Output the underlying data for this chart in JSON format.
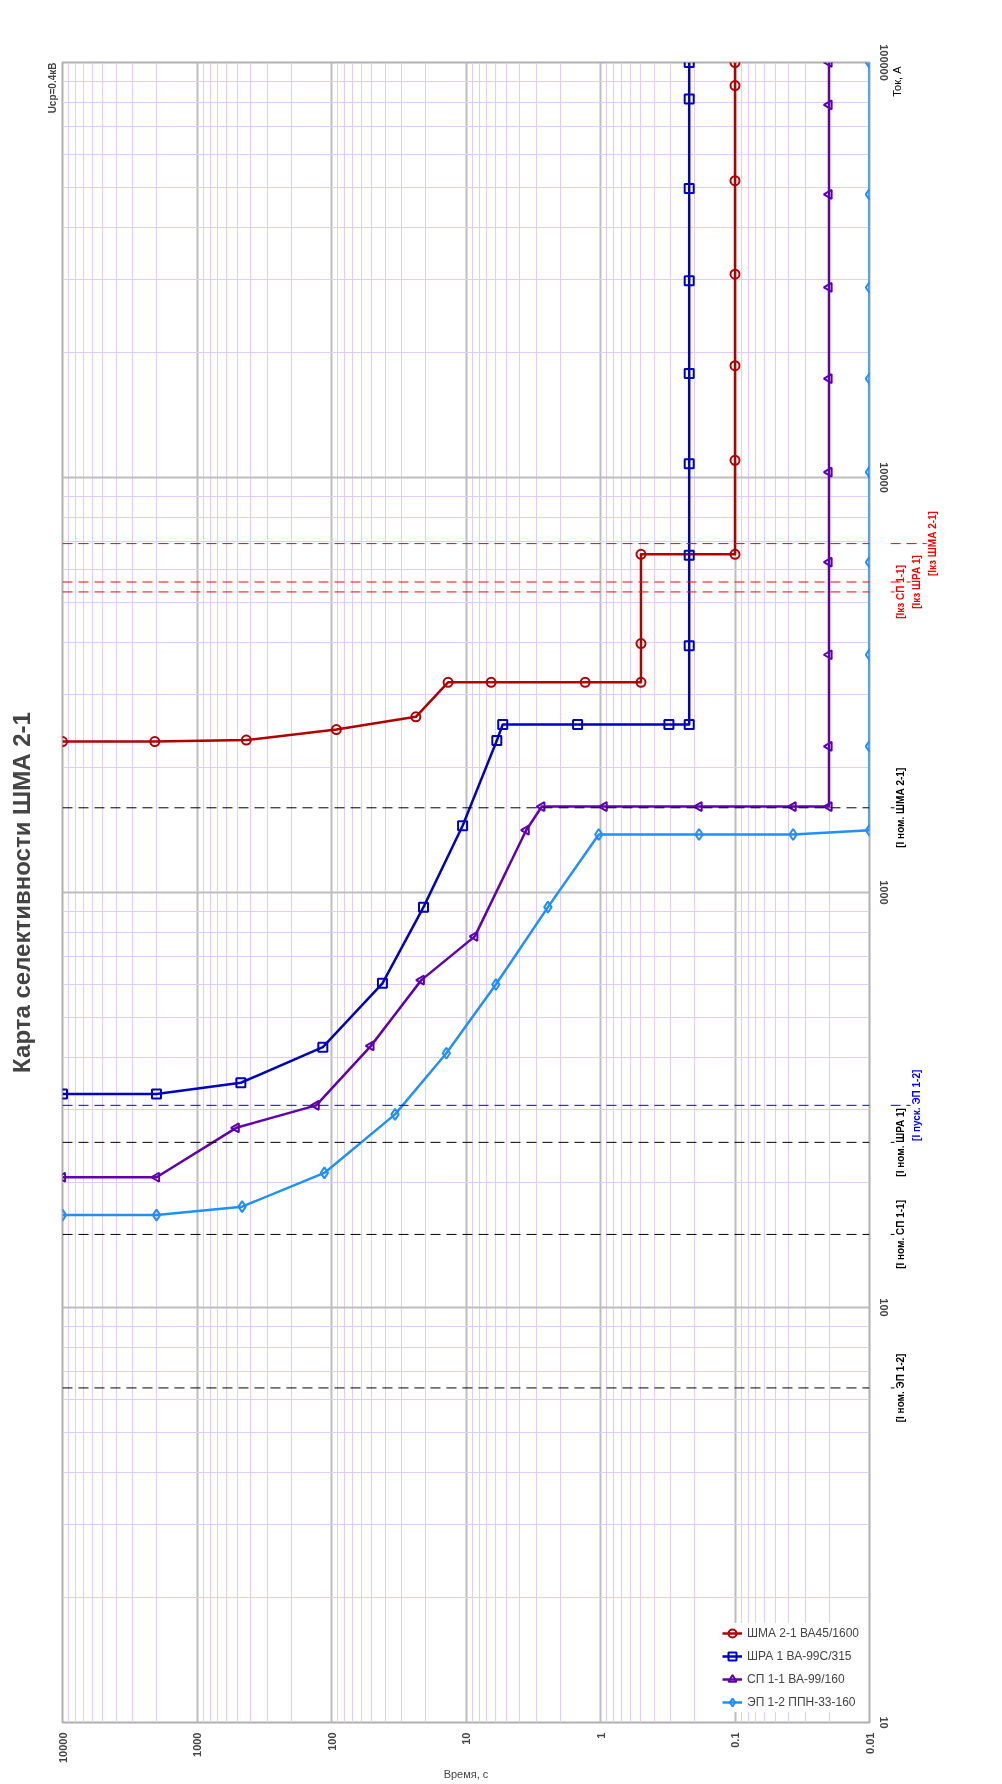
{
  "chart_data": {
    "type": "line",
    "title": "Карта селективности ШМА 2-1",
    "xlabel": "Время, с",
    "ylabel": "Ток, А",
    "annotations": [
      "Uср=0.4кВ"
    ],
    "log": "xy",
    "xlim": [
      10000,
      0.01
    ],
    "ylim": [
      10,
      100000
    ],
    "xticks": [
      10000,
      {
        "value": 9000,
        "label": null
      },
      {
        "value": 8000,
        "label": null
      },
      {
        "value": 7000,
        "label": null
      },
      {
        "value": 6000,
        "label": null
      },
      {
        "value": 5000,
        "label": null
      },
      {
        "value": 4000,
        "label": null
      },
      {
        "value": 3000,
        "label": null
      },
      {
        "value": 2000,
        "label": null
      },
      1000,
      {
        "value": 900,
        "label": null
      },
      {
        "value": 800,
        "label": null
      },
      {
        "value": 700,
        "label": null
      },
      {
        "value": 600,
        "label": null
      },
      {
        "value": 500,
        "label": null
      },
      {
        "value": 400,
        "label": null
      },
      {
        "value": 300,
        "label": null
      },
      {
        "value": 200,
        "label": null
      },
      100,
      {
        "value": 90,
        "label": null
      },
      {
        "value": 80,
        "label": null
      },
      {
        "value": 70,
        "label": null
      },
      {
        "value": 60,
        "label": null
      },
      {
        "value": 50,
        "label": null
      },
      {
        "value": 40,
        "label": null
      },
      {
        "value": 30,
        "label": null
      },
      {
        "value": 20,
        "label": null
      },
      10,
      {
        "value": 9,
        "label": null
      },
      {
        "value": 8,
        "label": null
      },
      {
        "value": 7,
        "label": null
      },
      {
        "value": 6,
        "label": null
      },
      {
        "value": 5,
        "label": null
      },
      {
        "value": 4,
        "label": null
      },
      {
        "value": 3,
        "label": null
      },
      {
        "value": 2,
        "label": null
      },
      1,
      {
        "value": 0.9,
        "label": null
      },
      {
        "value": 0.8,
        "label": null
      },
      {
        "value": 0.7,
        "label": null
      },
      {
        "value": 0.6,
        "label": null
      },
      {
        "value": 0.5,
        "label": null
      },
      {
        "value": 0.4,
        "label": null
      },
      {
        "value": 0.3,
        "label": null
      },
      {
        "value": 0.2,
        "label": null
      },
      0.1,
      {
        "value": 0.09,
        "label": null
      },
      {
        "value": 0.08,
        "label": null
      },
      {
        "value": 0.07,
        "label": null
      },
      {
        "value": 0.06,
        "label": null
      },
      {
        "value": 0.05,
        "label": null
      },
      {
        "value": 0.04,
        "label": null
      },
      {
        "value": 0.03,
        "label": null
      },
      {
        "value": 0.02,
        "label": null
      },
      0.01
    ],
    "yticks": [
      10,
      {
        "value": 20,
        "label": null
      },
      {
        "value": 30,
        "label": null
      },
      {
        "value": 40,
        "label": null
      },
      {
        "value": 50,
        "label": null
      },
      {
        "value": 60,
        "label": null
      },
      {
        "value": 70,
        "label": null
      },
      {
        "value": 80,
        "label": null
      },
      {
        "value": 90,
        "label": null
      },
      100,
      {
        "value": 200,
        "label": null
      },
      {
        "value": 300,
        "label": null
      },
      {
        "value": 400,
        "label": null
      },
      {
        "value": 500,
        "label": null
      },
      {
        "value": 600,
        "label": null
      },
      {
        "value": 700,
        "label": null
      },
      {
        "value": 800,
        "label": null
      },
      {
        "value": 900,
        "label": null
      },
      1000,
      {
        "value": 2000,
        "label": null
      },
      {
        "value": 3000,
        "label": null
      },
      {
        "value": 4000,
        "label": null
      },
      {
        "value": 5000,
        "label": null
      },
      {
        "value": 6000,
        "label": null
      },
      {
        "value": 7000,
        "label": null
      },
      {
        "value": 8000,
        "label": null
      },
      {
        "value": 9000,
        "label": null
      },
      10000,
      {
        "value": 20000,
        "label": null
      },
      {
        "value": 30000,
        "label": null
      },
      {
        "value": 40000,
        "label": null
      },
      {
        "value": 50000,
        "label": null
      },
      {
        "value": 60000,
        "label": null
      },
      {
        "value": 70000,
        "label": null
      },
      {
        "value": 80000,
        "label": null
      },
      {
        "value": 90000,
        "label": null
      },
      100000
    ],
    "grid": true,
    "legend": "bottom right",
    "line_style": "solid",
    "series": [
      {
        "name": "ШМА 2-1 ВА45/1600",
        "color": "#b00000",
        "marker": "circle",
        "x": [
          10000,
          2060,
          430,
          92,
          23.6,
          13.6,
          6.5,
          1.3,
          0.5,
          0.5,
          0.5,
          0.1,
          0.1,
          0.1,
          0.1,
          0.1,
          0.1,
          0.1
        ],
        "values": [
          2310,
          2310,
          2330,
          2470,
          2650,
          3210,
          3210,
          3210,
          3210,
          3980,
          6530,
          6530,
          11000,
          18600,
          30900,
          51900,
          88000,
          100000
        ]
      },
      {
        "name": "ШРА 1 ВА-99С/315",
        "color": "#0000c0",
        "marker": "square",
        "x": [
          10000,
          2000,
          472,
          116,
          41.8,
          20.7,
          10.6,
          5.9,
          5.33,
          1.48,
          0.31,
          0.219,
          0.219,
          0.219,
          0.219,
          0.219,
          0.219,
          0.219,
          0.219,
          0.219
        ],
        "values": [
          327,
          327,
          348,
          424,
          604,
          922,
          1448,
          2323,
          2541,
          2541,
          2541,
          2541,
          3930,
          6500,
          10800,
          17800,
          29800,
          49700,
          81700,
          100000
        ]
      },
      {
        "name": "СП 1-1 ВА-99/160",
        "color": "#6000b0",
        "marker": "triangle",
        "x": [
          10000,
          2000,
          511,
          130,
          50.9,
          21.5,
          8.6,
          3.57,
          2.73,
          0.94,
          0.185,
          0.037,
          0.02,
          0.02,
          0.02,
          0.02,
          0.02,
          0.02,
          0.02,
          0.02,
          0.02,
          0.02
        ],
        "values": [
          206,
          206,
          271,
          307,
          427,
          615,
          784,
          1413,
          1611,
          1611,
          1611,
          1611,
          1611,
          2250,
          3740,
          6250,
          10300,
          17300,
          28700,
          48100,
          79000,
          100000
        ]
      },
      {
        "name": "ЭП 1-2 ППН-33-160",
        "color": "#1e90ff",
        "marker": "diamond",
        "x": [
          10000,
          2000,
          462,
          113,
          33.7,
          14,
          6,
          2.46,
          1.03,
          0.185,
          0.037,
          0.01,
          0.01,
          0.01,
          0.01,
          0.01,
          0.01,
          0.01,
          0.01,
          0.01
        ],
        "values": [
          167,
          167,
          175,
          211,
          292,
          410,
          600,
          922,
          1380,
          1380,
          1380,
          1413,
          2250,
          3740,
          6250,
          10300,
          17300,
          28700,
          48100,
          100000
        ]
      }
    ],
    "ref_lines": [
      {
        "axis": "y",
        "value": 64,
        "label": "[I ном. ЭП 1-2]",
        "color": "#000000",
        "line_style": "dashed"
      },
      {
        "axis": "y",
        "value": 150,
        "label": "[I ном. СП 1-1]",
        "color": "#000000",
        "line_style": "dashed"
      },
      {
        "axis": "y",
        "value": 250,
        "label": "[I ном. ШРА 1]",
        "color": "#000000",
        "line_style": "dashed"
      },
      {
        "axis": "y",
        "value": 307,
        "label": "[I пуск. ЭП 1-2]",
        "color": "#0000ff",
        "line_style": "dashed"
      },
      {
        "axis": "y",
        "value": 1600,
        "label": "[I ном. ШМА 2-1]",
        "color": "#000000",
        "line_style": "dashed"
      },
      {
        "axis": "y",
        "value": 5300,
        "label": "[Iкз СП 1-1]",
        "color": "#ff0000",
        "line_style": "dashed"
      },
      {
        "axis": "y",
        "value": 5600,
        "label": "[Iкз ШРА 1]",
        "color": "#ff0000",
        "line_style": "dashed"
      },
      {
        "axis": "y",
        "value": 6930,
        "label": "[Iкз ШМА 2-1]",
        "color": "#ff0000",
        "line_style": "dashed"
      }
    ]
  }
}
